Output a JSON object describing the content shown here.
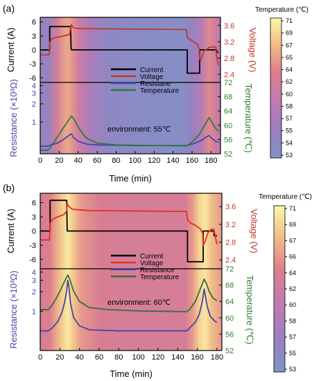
{
  "chart_data": [
    {
      "type": "line",
      "panel_label": "(a)",
      "xlabel": "Time (min)",
      "xlim": [
        0,
        190
      ],
      "xticks": [
        0,
        20,
        40,
        60,
        80,
        100,
        120,
        140,
        160,
        180
      ],
      "annotation": "environment: 55℃",
      "top": {
        "left_axis": {
          "label": "Current (A)",
          "ticks": [
            6,
            3,
            0,
            -3,
            -6
          ],
          "ylim": [
            -7,
            7
          ]
        },
        "right_axis": {
          "label": "Voltage (V)",
          "ticks": [
            "3.6",
            "3.2",
            "2.8",
            "2.4"
          ],
          "ylim": [
            2.2,
            3.8
          ],
          "color": "#c0392b"
        },
        "series": [
          {
            "name": "Current",
            "color": "#000000",
            "axis": "left",
            "points": [
              [
                0,
                0
              ],
              [
                10,
                0
              ],
              [
                10,
                5
              ],
              [
                32,
                5
              ],
              [
                32.5,
                0.5
              ],
              [
                33,
                0
              ],
              [
                155,
                0
              ],
              [
                155,
                -5
              ],
              [
                168,
                -5
              ],
              [
                168,
                0
              ],
              [
                186,
                0
              ],
              [
                186,
                -0.5
              ],
              [
                188,
                -0.5
              ]
            ]
          },
          {
            "name": "Voltage",
            "color": "#c0392b",
            "axis": "right",
            "points": [
              [
                0,
                2.88
              ],
              [
                9.5,
                2.88
              ],
              [
                10,
                3.18
              ],
              [
                12,
                3.27
              ],
              [
                16,
                3.3
              ],
              [
                22,
                3.33
              ],
              [
                28,
                3.36
              ],
              [
                31,
                3.38
              ],
              [
                32,
                3.55
              ],
              [
                33,
                3.62
              ],
              [
                34,
                3.56
              ],
              [
                37,
                3.53
              ],
              [
                50,
                3.52
              ],
              [
                100,
                3.51
              ],
              [
                154,
                3.5
              ],
              [
                155,
                3.32
              ],
              [
                157,
                3.26
              ],
              [
                162,
                3.2
              ],
              [
                166,
                3.12
              ],
              [
                167.5,
                3.02
              ],
              [
                168,
                2.78
              ],
              [
                169,
                2.72
              ],
              [
                170,
                2.82
              ],
              [
                173,
                2.98
              ],
              [
                178,
                3.06
              ],
              [
                183,
                3.08
              ],
              [
                185,
                3.06
              ],
              [
                186,
                2.82
              ],
              [
                188,
                2.62
              ]
            ]
          }
        ]
      },
      "bottom": {
        "left_axis": {
          "label": "Resistance (×10³Ω)",
          "ticks": [
            "4",
            "3",
            "2",
            "1"
          ],
          "scale": "log",
          "ylim": [
            0.3,
            4.5
          ],
          "color": "#4444aa"
        },
        "right_axis": {
          "label": "Temperature (℃)",
          "ticks": [
            72,
            68,
            64,
            60,
            56,
            52
          ],
          "ylim": [
            52,
            72
          ],
          "color": "#2e7d32"
        },
        "series": [
          {
            "name": "Resistane",
            "color": "#4444aa",
            "axis": "left",
            "points": [
              [
                0,
                0.4
              ],
              [
                8,
                0.4
              ],
              [
                11,
                0.42
              ],
              [
                18,
                0.45
              ],
              [
                25,
                0.52
              ],
              [
                30,
                0.6
              ],
              [
                33,
                0.64
              ],
              [
                35,
                0.56
              ],
              [
                40,
                0.48
              ],
              [
                50,
                0.43
              ],
              [
                60,
                0.42
              ],
              [
                100,
                0.41
              ],
              [
                154,
                0.41
              ],
              [
                156,
                0.42
              ],
              [
                162,
                0.44
              ],
              [
                170,
                0.5
              ],
              [
                176,
                0.58
              ],
              [
                178,
                0.6
              ],
              [
                180,
                0.55
              ],
              [
                185,
                0.48
              ],
              [
                188,
                0.46
              ]
            ]
          },
          {
            "name": "Temperature",
            "color": "#2e7d32",
            "axis": "right",
            "points": [
              [
                0,
                53
              ],
              [
                8,
                53
              ],
              [
                10,
                53.5
              ],
              [
                15,
                55.5
              ],
              [
                20,
                57.5
              ],
              [
                25,
                59.5
              ],
              [
                30,
                61.5
              ],
              [
                33,
                62.6
              ],
              [
                36,
                61.5
              ],
              [
                40,
                59.5
              ],
              [
                45,
                57.5
              ],
              [
                50,
                56.2
              ],
              [
                60,
                55
              ],
              [
                80,
                54.5
              ],
              [
                100,
                54.4
              ],
              [
                154,
                54.2
              ],
              [
                157,
                54.6
              ],
              [
                162,
                55.8
              ],
              [
                168,
                57.5
              ],
              [
                172,
                59.5
              ],
              [
                176,
                61.2
              ],
              [
                178,
                62.2
              ],
              [
                181,
                60.8
              ],
              [
                185,
                59
              ],
              [
                188,
                58.3
              ]
            ]
          }
        ]
      },
      "colorbar": {
        "label": "Temperature (℃)",
        "ticks": [
          71,
          69,
          67,
          65,
          64,
          62,
          60,
          58,
          57,
          55,
          54,
          53
        ]
      },
      "legend": [
        "Current",
        "Voltage",
        "Resistane",
        "Temperature"
      ],
      "legend_position": "center"
    },
    {
      "type": "line",
      "panel_label": "(b)",
      "xlabel": "Time (min)",
      "xlim": [
        0,
        185
      ],
      "xticks": [
        0,
        20,
        40,
        60,
        80,
        100,
        120,
        140,
        160,
        180
      ],
      "annotation": "environment: 60℃",
      "top": {
        "left_axis": {
          "label": "Current (A)",
          "ticks": [
            6,
            3,
            0,
            -3,
            -6
          ],
          "ylim": [
            -8,
            8
          ]
        },
        "right_axis": {
          "label": "Voltage (V)",
          "ticks": [
            "3.6",
            "3.2",
            "2.8",
            "2.4"
          ],
          "ylim": [
            2.2,
            3.9
          ],
          "color": "#c0392b"
        },
        "series": [
          {
            "name": "Current",
            "color": "#000000",
            "axis": "left",
            "points": [
              [
                0,
                0
              ],
              [
                10,
                0
              ],
              [
                10,
                6.5
              ],
              [
                27,
                6.5
              ],
              [
                27.5,
                0
              ],
              [
                150,
                0
              ],
              [
                150,
                -6.5
              ],
              [
                166,
                -6.5
              ],
              [
                166,
                0
              ],
              [
                177,
                0
              ],
              [
                177,
                -1
              ],
              [
                180,
                -1
              ]
            ]
          },
          {
            "name": "Voltage",
            "color": "#e03020",
            "axis": "right",
            "points": [
              [
                0,
                2.85
              ],
              [
                9.5,
                2.85
              ],
              [
                10,
                3.22
              ],
              [
                13,
                3.32
              ],
              [
                18,
                3.37
              ],
              [
                24,
                3.42
              ],
              [
                27,
                3.5
              ],
              [
                27.5,
                3.68
              ],
              [
                29,
                3.6
              ],
              [
                33,
                3.54
              ],
              [
                50,
                3.51
              ],
              [
                100,
                3.5
              ],
              [
                149,
                3.49
              ],
              [
                150,
                3.3
              ],
              [
                153,
                3.23
              ],
              [
                158,
                3.18
              ],
              [
                163,
                3.1
              ],
              [
                165.5,
                3
              ],
              [
                166,
                2.72
              ],
              [
                168,
                2.82
              ],
              [
                171,
                3.02
              ],
              [
                175,
                3.1
              ],
              [
                177,
                3.08
              ],
              [
                178,
                2.95
              ],
              [
                180,
                2.75
              ]
            ]
          }
        ]
      },
      "bottom": {
        "left_axis": {
          "label": "Resistance (×10³Ω)",
          "ticks": [
            "4",
            "3",
            "2",
            "1"
          ],
          "scale": "log",
          "ylim": [
            0.25,
            4.5
          ],
          "color": "#4444aa"
        },
        "right_axis": {
          "label": "Temperature (℃)",
          "ticks": [
            72,
            68,
            64,
            60,
            56,
            52
          ],
          "ylim": [
            52,
            72
          ],
          "color": "#2e7d32"
        },
        "series": [
          {
            "name": "Resistance",
            "color": "#4444aa",
            "axis": "left",
            "points": [
              [
                0,
                0.5
              ],
              [
                8,
                0.5
              ],
              [
                12,
                0.55
              ],
              [
                18,
                0.7
              ],
              [
                22,
                0.95
              ],
              [
                25,
                1.4
              ],
              [
                27,
                2.1
              ],
              [
                28,
                3
              ],
              [
                29,
                2.5
              ],
              [
                31,
                1.3
              ],
              [
                34,
                0.8
              ],
              [
                40,
                0.6
              ],
              [
                50,
                0.52
              ],
              [
                80,
                0.5
              ],
              [
                149,
                0.5
              ],
              [
                152,
                0.55
              ],
              [
                158,
                0.68
              ],
              [
                162,
                0.9
              ],
              [
                165,
                1.4
              ],
              [
                167,
                2.2
              ],
              [
                168,
                1.8
              ],
              [
                170,
                1.2
              ],
              [
                173,
                0.85
              ],
              [
                178,
                0.7
              ],
              [
                180,
                0.68
              ]
            ]
          },
          {
            "name": "Temperature",
            "color": "#3a6b3a",
            "axis": "right",
            "points": [
              [
                0,
                62
              ],
              [
                8,
                62
              ],
              [
                12,
                63
              ],
              [
                18,
                65.5
              ],
              [
                24,
                68.5
              ],
              [
                28,
                70.5
              ],
              [
                30,
                69.5
              ],
              [
                34,
                66.5
              ],
              [
                40,
                64
              ],
              [
                50,
                62.5
              ],
              [
                70,
                62
              ],
              [
                100,
                61.7
              ],
              [
                149,
                61.5
              ],
              [
                152,
                62
              ],
              [
                158,
                64
              ],
              [
                163,
                67
              ],
              [
                167,
                69.5
              ],
              [
                169,
                68.5
              ],
              [
                172,
                66.5
              ],
              [
                176,
                64.8
              ],
              [
                180,
                64.2
              ]
            ]
          }
        ]
      },
      "colorbar": {
        "label": "Temperature (℃)",
        "ticks": [
          71,
          69,
          67,
          66,
          64,
          62,
          60,
          58,
          57,
          55,
          53
        ]
      },
      "legend": [
        "Current",
        "Voltage",
        "Resistance",
        "Temperature"
      ],
      "legend_position": "center"
    }
  ]
}
